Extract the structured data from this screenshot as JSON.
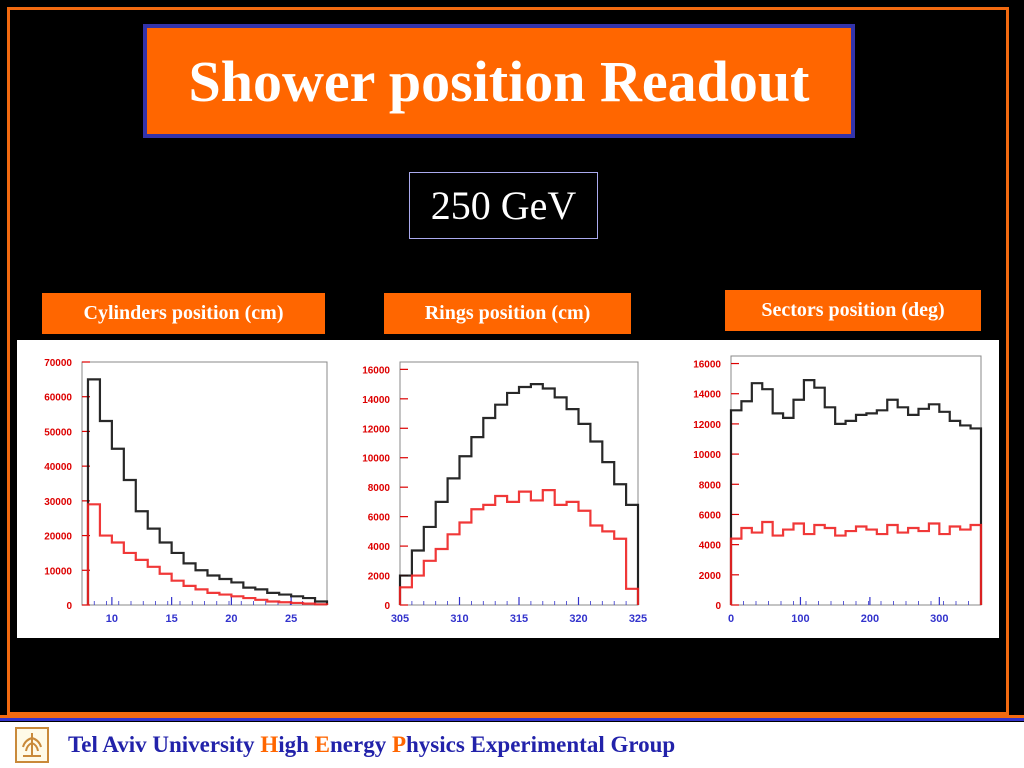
{
  "slide": {
    "title": "Shower position Readout",
    "energy": "250 GeV"
  },
  "footer": {
    "logo_icon": "university-emblem-icon",
    "parts": [
      {
        "text": "Tel Aviv University ",
        "highlight": false
      },
      {
        "text": "H",
        "highlight": true
      },
      {
        "text": "igh ",
        "highlight": false
      },
      {
        "text": "E",
        "highlight": true
      },
      {
        "text": "nergy ",
        "highlight": false
      },
      {
        "text": "P",
        "highlight": true
      },
      {
        "text": "hysics Experimental Group",
        "highlight": false
      }
    ]
  },
  "colors": {
    "accent": "#ff6600",
    "border_blue": "#3333aa",
    "series_black": "#111111",
    "series_red": "#ee2222",
    "tick_red": "#dd0000",
    "tick_blue": "#3333cc"
  },
  "chart_data": [
    {
      "type": "line",
      "title": "Cylinders position (cm)",
      "xlabel": "",
      "ylabel": "",
      "xlim": [
        7.5,
        28
      ],
      "ylim": [
        0,
        70000
      ],
      "xticks": [
        10,
        15,
        20,
        25
      ],
      "yticks": [
        0,
        10000,
        20000,
        30000,
        40000,
        50000,
        60000,
        70000
      ],
      "bin_edges": [
        8,
        9,
        10,
        11,
        12,
        13,
        14,
        15,
        16,
        17,
        18,
        19,
        20,
        21,
        22,
        23,
        24,
        25,
        26,
        27,
        28
      ],
      "series": [
        {
          "color": "#111111",
          "values": [
            65000,
            53000,
            45000,
            36000,
            27000,
            22000,
            18000,
            15000,
            12000,
            10000,
            8500,
            7500,
            6500,
            5000,
            4500,
            3500,
            3000,
            2500,
            2000,
            1000
          ]
        },
        {
          "color": "#ee2222",
          "values": [
            29000,
            20000,
            18000,
            15000,
            13000,
            11000,
            9000,
            7000,
            5500,
            4500,
            3500,
            3000,
            2500,
            2000,
            1500,
            1000,
            800,
            600,
            400,
            200
          ]
        }
      ]
    },
    {
      "type": "line",
      "title": "Rings position (cm)",
      "xlabel": "",
      "ylabel": "",
      "xlim": [
        305,
        325
      ],
      "ylim": [
        0,
        16500
      ],
      "xticks": [
        305,
        310,
        315,
        320,
        325
      ],
      "yticks": [
        0,
        2000,
        4000,
        6000,
        8000,
        10000,
        12000,
        14000,
        16000
      ],
      "bin_edges": [
        305,
        306,
        307,
        308,
        309,
        310,
        311,
        312,
        313,
        314,
        315,
        316,
        317,
        318,
        319,
        320,
        321,
        322,
        323,
        324,
        325
      ],
      "series": [
        {
          "color": "#111111",
          "values": [
            2000,
            3700,
            5300,
            7000,
            8600,
            10100,
            11400,
            12700,
            13600,
            14400,
            14800,
            15000,
            14700,
            14100,
            13300,
            12300,
            11100,
            9700,
            8200,
            6800
          ]
        },
        {
          "color": "#ee2222",
          "values": [
            1200,
            2000,
            3000,
            3800,
            4800,
            5600,
            6500,
            6800,
            7400,
            7000,
            7700,
            7100,
            7800,
            6800,
            7000,
            6400,
            5400,
            5000,
            4500,
            1100
          ]
        }
      ]
    },
    {
      "type": "line",
      "title": "Sectors position (deg)",
      "xlabel": "",
      "ylabel": "",
      "xlim": [
        0,
        360
      ],
      "ylim": [
        0,
        16500
      ],
      "xticks": [
        0,
        100,
        200,
        300
      ],
      "yticks": [
        0,
        2000,
        4000,
        6000,
        8000,
        10000,
        12000,
        14000,
        16000
      ],
      "bin_edges": [
        0,
        15,
        30,
        45,
        60,
        75,
        90,
        105,
        120,
        135,
        150,
        165,
        180,
        195,
        210,
        225,
        240,
        255,
        270,
        285,
        300,
        315,
        330,
        345,
        360
      ],
      "series": [
        {
          "color": "#111111",
          "values": [
            12900,
            13500,
            14700,
            14300,
            12700,
            12400,
            13600,
            14900,
            14400,
            13100,
            12000,
            12200,
            12600,
            12700,
            12900,
            13600,
            13100,
            12600,
            13000,
            13300,
            12800,
            12200,
            11900,
            11700
          ]
        },
        {
          "color": "#ee2222",
          "values": [
            4400,
            5100,
            4800,
            5500,
            4600,
            5000,
            5400,
            4700,
            5300,
            5100,
            4600,
            4900,
            5200,
            5000,
            4700,
            5300,
            4800,
            5100,
            4900,
            5400,
            4700,
            5200,
            5000,
            5300
          ]
        }
      ]
    }
  ]
}
